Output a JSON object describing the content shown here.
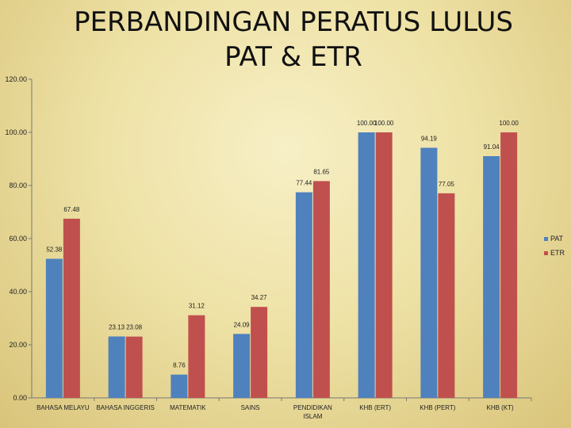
{
  "chart_data": {
    "type": "bar",
    "title_lines": [
      "PERBANDINGAN PERATUS LULUS",
      "PAT & ETR"
    ],
    "categories": [
      [
        "BAHASA MELAYU"
      ],
      [
        "BAHASA INGGERIS"
      ],
      [
        "MATEMATIK"
      ],
      [
        "SAINS"
      ],
      [
        "PENDIDIKAN",
        "ISLAM"
      ],
      [
        "KHB (ERT)"
      ],
      [
        "KHB (PERT)"
      ],
      [
        "KHB (KT)"
      ]
    ],
    "series": [
      {
        "name": "PAT",
        "color": "#4f81bd",
        "values": [
          52.38,
          23.13,
          8.76,
          24.09,
          77.44,
          100.0,
          94.19,
          91.04
        ],
        "labels": [
          "52.38",
          "23.13",
          "8.76",
          "24.09",
          "77.44",
          "100.00",
          "94.19",
          "91.04"
        ]
      },
      {
        "name": "ETR",
        "color": "#c0504d",
        "values": [
          67.48,
          23.08,
          31.12,
          34.27,
          81.65,
          100.0,
          77.05,
          100.0
        ],
        "labels": [
          "67.48",
          "23.08",
          "31.12",
          "34.27",
          "81.65",
          "100.00",
          "77.05",
          "100.00"
        ]
      }
    ],
    "y_ticks": [
      "0.00",
      "20.00",
      "40.00",
      "60.00",
      "80.00",
      "100.00",
      "120.00"
    ],
    "ylim": [
      0,
      120
    ],
    "grid": false,
    "legend": "right"
  }
}
